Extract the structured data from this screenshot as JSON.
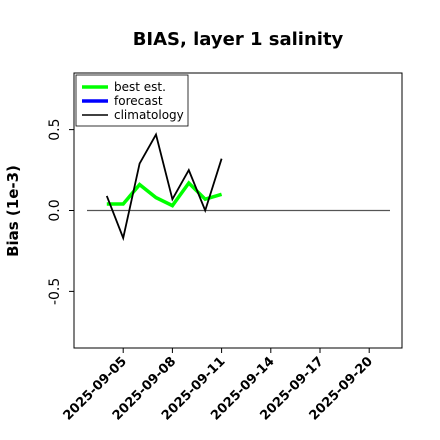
{
  "chart_data": {
    "type": "line",
    "title": "BIAS, layer 1 salinity",
    "xlabel": "",
    "ylabel": "Bias (1e-3)",
    "xlim": [
      "2025-09-02",
      "2025-09-22"
    ],
    "ylim": [
      -0.85,
      0.85
    ],
    "x_ticks": [
      "2025-09-05",
      "2025-09-08",
      "2025-09-11",
      "2025-09-14",
      "2025-09-17",
      "2025-09-20"
    ],
    "highlight_tick": "2025-09-11",
    "highlight_color": "#2e8b2e",
    "y_ticks": [
      -0.5,
      0.0,
      0.5
    ],
    "y_tick_labels": [
      "-0.5",
      "0.0",
      "0.5"
    ],
    "zero_line": true,
    "grid": false,
    "legend": {
      "placement": "top-left",
      "entries": [
        "best est.",
        "forecast",
        "climatology"
      ]
    },
    "series": [
      {
        "name": "best est.",
        "color": "#00ff00",
        "x": [
          "2025-09-04",
          "2025-09-05",
          "2025-09-06",
          "2025-09-07",
          "2025-09-08",
          "2025-09-09",
          "2025-09-10",
          "2025-09-11"
        ],
        "values": [
          0.04,
          0.04,
          0.16,
          0.08,
          0.03,
          0.17,
          0.07,
          0.1
        ]
      },
      {
        "name": "forecast",
        "color": "#0000ff",
        "x": [],
        "values": []
      },
      {
        "name": "climatology",
        "color": "#000000",
        "x": [
          "2025-09-04",
          "2025-09-05",
          "2025-09-06",
          "2025-09-07",
          "2025-09-08",
          "2025-09-09",
          "2025-09-10",
          "2025-09-11"
        ],
        "values": [
          0.09,
          -0.17,
          0.29,
          0.47,
          0.07,
          0.25,
          0.0,
          0.32
        ]
      }
    ]
  }
}
